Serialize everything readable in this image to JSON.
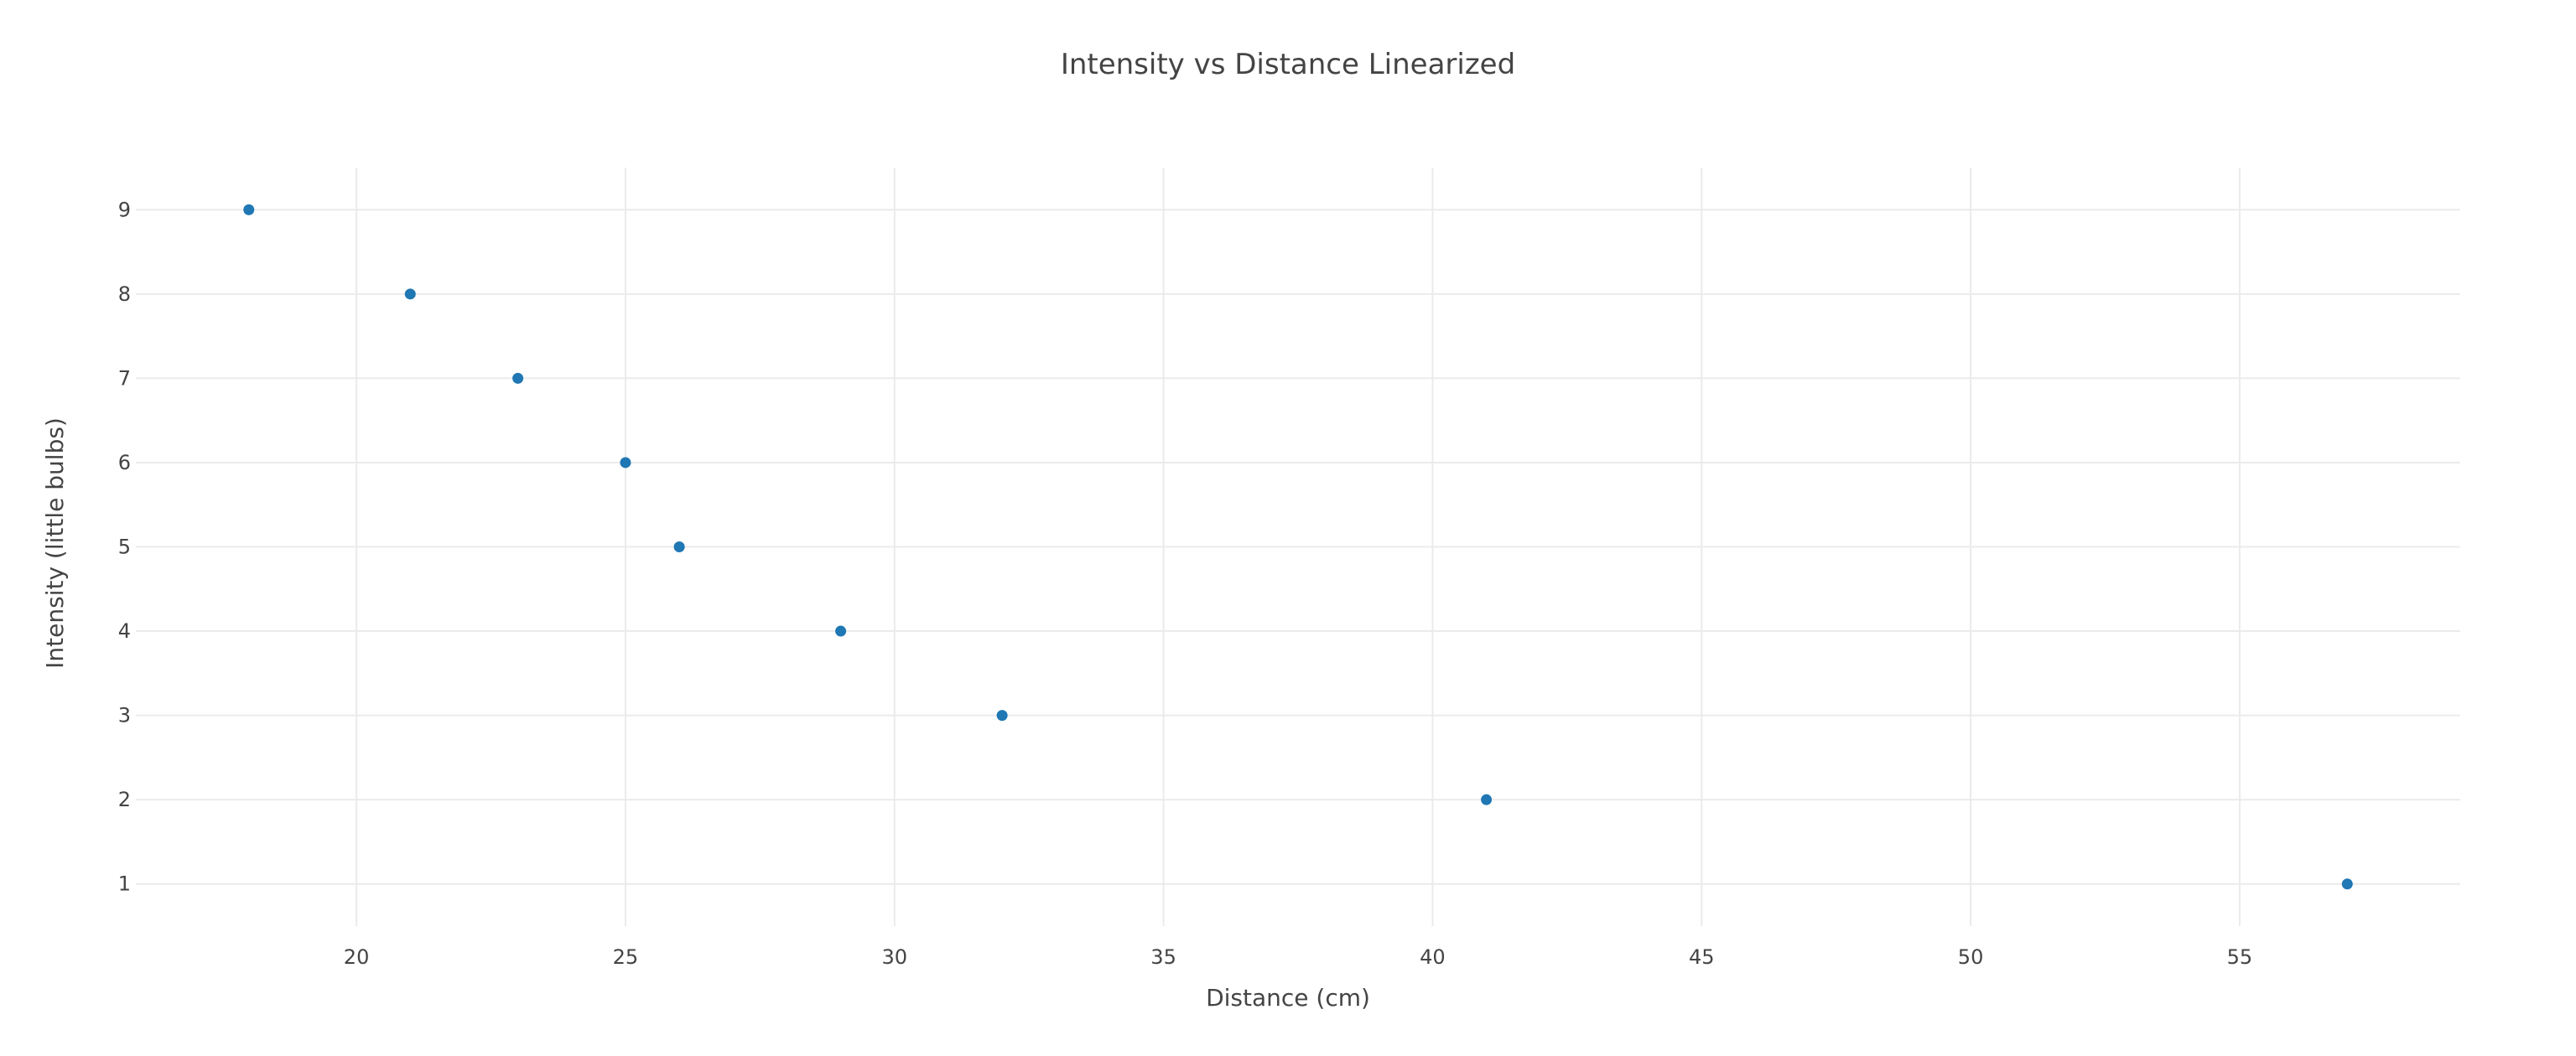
{
  "chart_data": {
    "type": "scatter",
    "title": "Intensity vs Distance Linearized",
    "xlabel": "Distance (cm)",
    "ylabel": "Intensity (little bulbs)",
    "x": [
      18,
      21,
      23,
      25,
      26,
      29,
      32,
      41,
      57
    ],
    "y": [
      9,
      8,
      7,
      6,
      5,
      4,
      3,
      2,
      1
    ],
    "xlim": [
      15.9,
      59.1
    ],
    "ylim": [
      0.5,
      9.5
    ],
    "xticks": [
      20,
      25,
      30,
      35,
      40,
      45,
      50,
      55
    ],
    "yticks": [
      1,
      2,
      3,
      4,
      5,
      6,
      7,
      8,
      9
    ],
    "grid": true,
    "legend": "none",
    "marker_color": "#1f77b4"
  }
}
